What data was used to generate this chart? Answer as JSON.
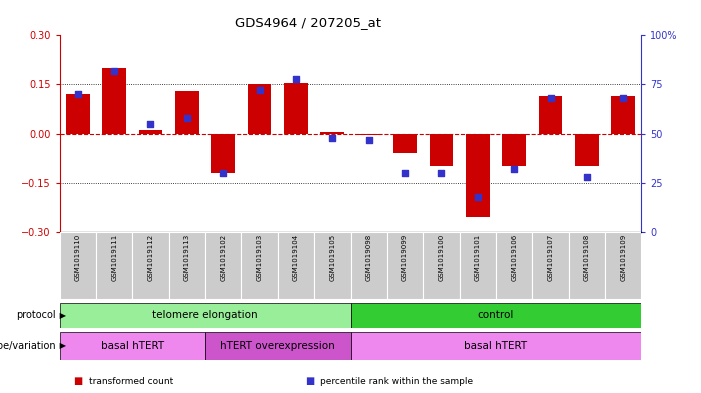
{
  "title": "GDS4964 / 207205_at",
  "samples": [
    "GSM1019110",
    "GSM1019111",
    "GSM1019112",
    "GSM1019113",
    "GSM1019102",
    "GSM1019103",
    "GSM1019104",
    "GSM1019105",
    "GSM1019098",
    "GSM1019099",
    "GSM1019100",
    "GSM1019101",
    "GSM1019106",
    "GSM1019107",
    "GSM1019108",
    "GSM1019109"
  ],
  "bar_values": [
    0.12,
    0.2,
    0.01,
    0.13,
    -0.12,
    0.15,
    0.155,
    0.005,
    -0.005,
    -0.06,
    -0.1,
    -0.255,
    -0.1,
    0.115,
    -0.1,
    0.115
  ],
  "dot_values": [
    70,
    82,
    55,
    58,
    30,
    72,
    78,
    48,
    47,
    30,
    30,
    18,
    32,
    68,
    28,
    68
  ],
  "ylim_left": [
    -0.3,
    0.3
  ],
  "ylim_right": [
    0,
    100
  ],
  "yticks_left": [
    -0.3,
    -0.15,
    0,
    0.15,
    0.3
  ],
  "yticks_right": [
    0,
    25,
    50,
    75,
    100
  ],
  "hlines": [
    0.15,
    -0.15
  ],
  "bar_color": "#cc0000",
  "dot_color": "#3333cc",
  "zero_line_color": "#cc0000",
  "protocol_groups": [
    {
      "label": "telomere elongation",
      "start": 0,
      "end": 7,
      "color": "#99ee99"
    },
    {
      "label": "control",
      "start": 8,
      "end": 15,
      "color": "#33cc33"
    }
  ],
  "genotype_groups": [
    {
      "label": "basal hTERT",
      "start": 0,
      "end": 3,
      "color": "#ee88ee"
    },
    {
      "label": "hTERT overexpression",
      "start": 4,
      "end": 7,
      "color": "#cc55cc"
    },
    {
      "label": "basal hTERT",
      "start": 8,
      "end": 15,
      "color": "#ee88ee"
    }
  ],
  "legend_items": [
    {
      "color": "#cc0000",
      "label": "transformed count"
    },
    {
      "color": "#3333cc",
      "label": "percentile rank within the sample"
    }
  ],
  "bg_color": "#ffffff",
  "plot_bg": "#ffffff",
  "tick_bg": "#cccccc"
}
